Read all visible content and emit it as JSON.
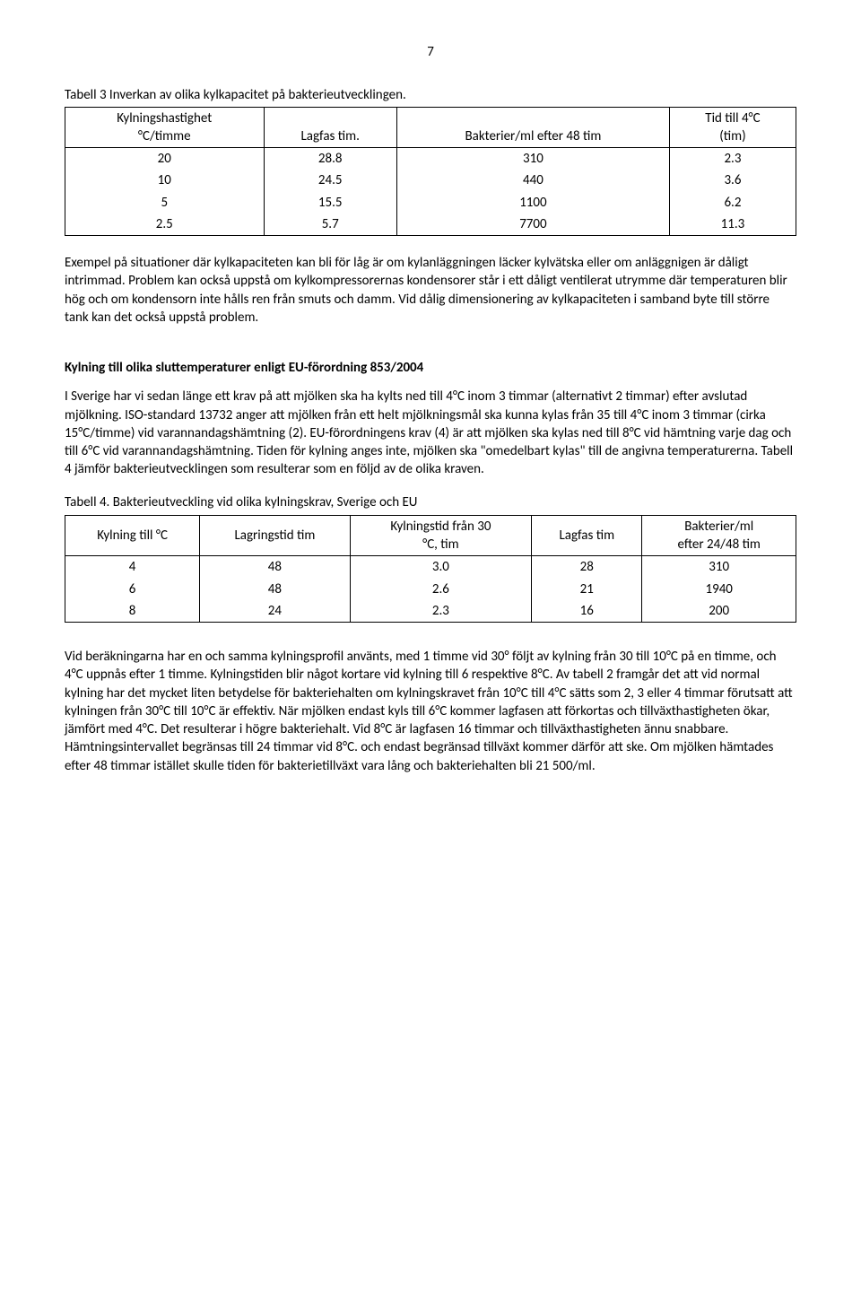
{
  "page_number": "7",
  "table3": {
    "caption": "Tabell 3 Inverkan av olika kylkapacitet på bakterieutvecklingen.",
    "col1_l1": "Kylningshastighet",
    "col1_l2": "°C/timme",
    "col2": "Lagfas tim.",
    "col3": "Bakterier/ml efter 48 tim",
    "col4_l1": "Tid till 4°C",
    "col4_l2": "(tim)",
    "rows": [
      {
        "c1": "20",
        "c2": "28.8",
        "c3": "310",
        "c4": "2.3"
      },
      {
        "c1": "10",
        "c2": "24.5",
        "c3": "440",
        "c4": "3.6"
      },
      {
        "c1": "5",
        "c2": "15.5",
        "c3": "1100",
        "c4": "6.2"
      },
      {
        "c1": "2.5",
        "c2": "5.7",
        "c3": "7700",
        "c4": "11.3"
      }
    ]
  },
  "para1": "Exempel på situationer där kylkapaciteten kan bli för låg är om kylanläggningen läcker kylvätska eller om anläggnigen är dåligt intrimmad. Problem kan också uppstå om kylkompressorernas kondensorer står i ett dåligt ventilerat utrymme där temperaturen blir hög och om kondensorn inte hålls ren från smuts och damm. Vid dålig dimensionering av kylkapaciteten i samband byte till större tank kan det också uppstå problem.",
  "heading1": "Kylning till olika sluttemperaturer enligt EU-förordning 853/2004",
  "para2": "I Sverige har vi sedan länge ett krav på att mjölken ska ha kylts ned till 4°C inom 3 timmar (alternativt 2 timmar) efter avslutad mjölkning. ISO-standard 13732 anger att mjölken från ett helt mjölkningsmål ska kunna kylas från 35 till 4°C inom 3 timmar (cirka 15°C/timme) vid varannandagshämtning (2). EU-förordningens krav (4) är att mjölken ska kylas ned till 8°C vid hämtning varje dag och till 6°C vid varannandagshämtning. Tiden för kylning anges inte, mjölken ska \"omedelbart kylas\" till de angivna temperaturerna. Tabell 4 jämför bakterieutvecklingen som resulterar som en följd av de olika kraven.",
  "table4": {
    "caption": "Tabell 4. Bakterieutveckling vid olika kylningskrav, Sverige och EU",
    "col1": "Kylning till °C",
    "col2": "Lagringstid tim",
    "col3_l1": "Kylningstid från 30",
    "col3_l2": "°C, tim",
    "col4": "Lagfas tim",
    "col5_l1": "Bakterier/ml",
    "col5_l2": "efter 24/48 tim",
    "rows": [
      {
        "c1": "4",
        "c2": "48",
        "c3": "3.0",
        "c4": "28",
        "c5": "310"
      },
      {
        "c1": "6",
        "c2": "48",
        "c3": "2.6",
        "c4": "21",
        "c5": "1940"
      },
      {
        "c1": "8",
        "c2": "24",
        "c3": "2.3",
        "c4": "16",
        "c5": "200"
      }
    ]
  },
  "para3": "Vid beräkningarna har en och samma kylningsprofil använts, med 1 timme vid 30° följt av kylning från 30 till 10°C på en timme, och 4°C uppnås efter 1 timme. Kylningstiden blir något kortare vid kylning till 6 respektive 8°C. Av tabell 2 framgår det att vid normal kylning har det mycket liten betydelse för bakteriehalten om kylningskravet från 10°C till 4°C sätts som 2, 3 eller 4 timmar förutsatt att kylningen från 30°C till 10°C är effektiv. När mjölken endast kyls till 6°C kommer lagfasen att förkortas och tillväxthastigheten ökar, jämfört med 4°C. Det resulterar i högre bakteriehalt. Vid 8°C är lagfasen 16 timmar och tillväxthastigheten ännu snabbare. Hämtningsintervallet begränsas till 24 timmar vid 8°C. och endast begränsad tillväxt kommer därför att ske. Om mjölken hämtades efter 48 timmar istället skulle tiden för bakterietillväxt vara lång och bakteriehalten bli 21 500/ml."
}
